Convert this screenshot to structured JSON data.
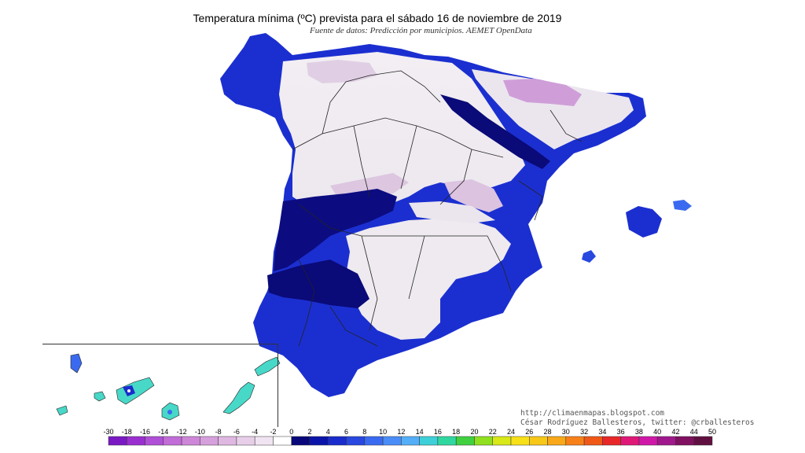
{
  "map": {
    "title": "Temperatura mínima (ºC) prevista para el sábado 16 de noviembre de 2019",
    "source": "Fuente de datos: Predicción por municipios. AEMET OpenData",
    "credit_line1": "http://climaenmapas.blogspot.com",
    "credit_line2": "César Rodríguez Ballesteros, twitter: @crballesteros",
    "regions": [
      "Península Ibérica",
      "Islas Baleares",
      "Islas Canarias"
    ]
  },
  "legend": {
    "ticks": [
      "-30",
      "-18",
      "-16",
      "-14",
      "-12",
      "-10",
      "-8",
      "-6",
      "-4",
      "-2",
      "0",
      "2",
      "4",
      "6",
      "8",
      "10",
      "12",
      "14",
      "16",
      "18",
      "20",
      "22",
      "24",
      "26",
      "28",
      "30",
      "32",
      "34",
      "36",
      "38",
      "40",
      "42",
      "44",
      "50"
    ],
    "colors": [
      "#7a19c4",
      "#9a2fd0",
      "#b04fd8",
      "#c26cd8",
      "#cd86d8",
      "#d6a0dc",
      "#dfb8e2",
      "#e8cfe9",
      "#f1e4f2",
      "#ffffff",
      "#08087a",
      "#0a14a8",
      "#1a2ccc",
      "#2848e0",
      "#3a6af0",
      "#4a8cf8",
      "#54aef8",
      "#3ed0d8",
      "#30d8a0",
      "#40d040",
      "#90e020",
      "#d8e818",
      "#f8e018",
      "#f8c818",
      "#f8a818",
      "#f88018",
      "#f05818",
      "#e82828",
      "#e01878",
      "#d018a8",
      "#a0188c",
      "#801060",
      "#601040"
    ]
  },
  "colors": {
    "cold_blue": "#1b2fd0",
    "deep_blue": "#08087a",
    "lilac": "#d8c0dc",
    "pale": "#f0ecf0",
    "canary_teal": "#48d8c8",
    "border": "#222222"
  }
}
